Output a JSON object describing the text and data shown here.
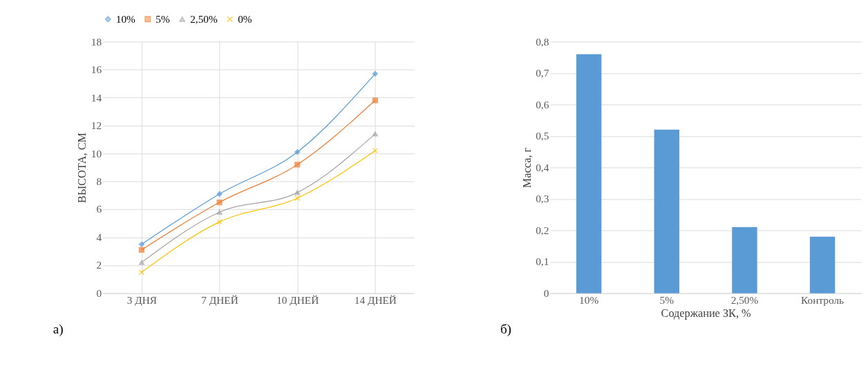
{
  "chart_data": [
    {
      "type": "line",
      "categories": [
        "3 ДНЯ",
        "7 ДНЕЙ",
        "10 ДНЕЙ",
        "14 ДНЕЙ"
      ],
      "ylabel": "ВЫСОТА, СМ",
      "ylim": [
        0,
        18
      ],
      "yticks": [
        0,
        2,
        4,
        6,
        8,
        10,
        12,
        14,
        16,
        18
      ],
      "grid": true,
      "legend": "top",
      "annotations": [
        "а)"
      ],
      "series": [
        {
          "name": "10%",
          "color": "#5b9bd5",
          "marker": "diamond",
          "values": [
            3.5,
            7.1,
            10.1,
            15.7
          ]
        },
        {
          "name": "5%",
          "color": "#ed7d31",
          "marker": "square",
          "values": [
            3.1,
            6.5,
            9.2,
            13.8
          ]
        },
        {
          "name": "2,50%",
          "color": "#a5a5a5",
          "marker": "triangle",
          "values": [
            2.2,
            5.8,
            7.2,
            11.4
          ]
        },
        {
          "name": "0%",
          "color": "#ffc000",
          "marker": "cross",
          "values": [
            1.5,
            5.1,
            6.8,
            10.2
          ]
        }
      ]
    },
    {
      "type": "bar",
      "categories": [
        "10%",
        "5%",
        "2,50%",
        "Контроль"
      ],
      "values": [
        0.76,
        0.52,
        0.21,
        0.18
      ],
      "color": "#5b9bd5",
      "xlabel": "Содержание ЗК, %",
      "ylabel": "Масса, г",
      "ylim": [
        0,
        0.8
      ],
      "grid": "y",
      "annotations": [
        "б)"
      ],
      "yticks": [
        {
          "value": 0,
          "label": "0"
        },
        {
          "value": 0.1,
          "label": "0,1"
        },
        {
          "value": 0.2,
          "label": "0,2"
        },
        {
          "value": 0.3,
          "label": "0,3"
        },
        {
          "value": 0.4,
          "label": "0,4"
        },
        {
          "value": 0.5,
          "label": "0,5"
        },
        {
          "value": 0.6,
          "label": "0,6"
        },
        {
          "value": 0.7,
          "label": "0,7"
        },
        {
          "value": 0.8,
          "label": "0,8"
        }
      ]
    }
  ]
}
